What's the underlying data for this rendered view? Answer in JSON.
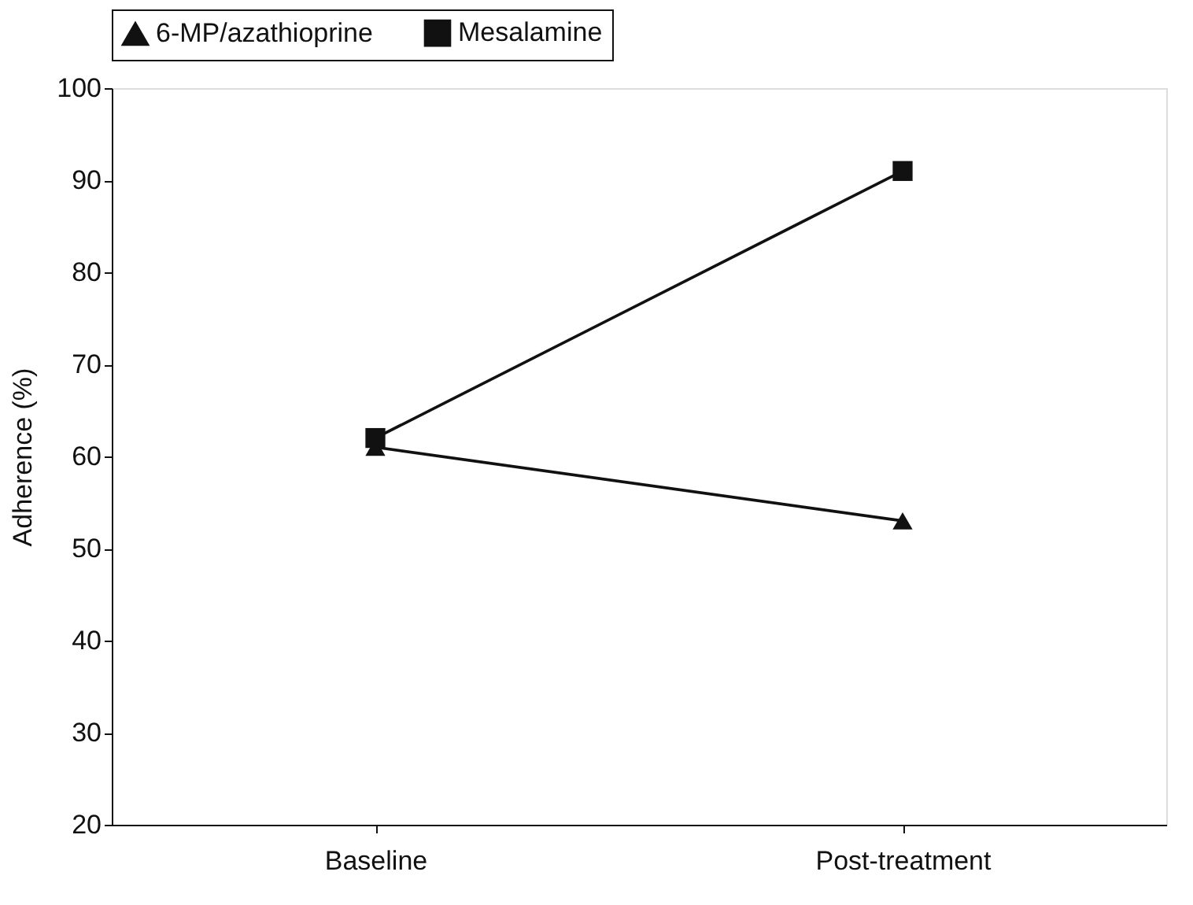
{
  "chart_data": {
    "type": "line",
    "ylabel": "Adherence (%)",
    "categories": [
      "Baseline",
      "Post-treatment"
    ],
    "series": [
      {
        "name": "6-MP/azathioprine",
        "color": "#111111",
        "marker": "triangle",
        "values": [
          61,
          53
        ]
      },
      {
        "name": "Mesalamine",
        "color": "#111111",
        "marker": "square",
        "values": [
          62,
          91
        ]
      }
    ],
    "ylim": [
      20,
      100
    ],
    "yticks": [
      20,
      30,
      40,
      50,
      60,
      70,
      80,
      90,
      100
    ],
    "grid": false,
    "legend": "top",
    "line_style": "solid"
  }
}
